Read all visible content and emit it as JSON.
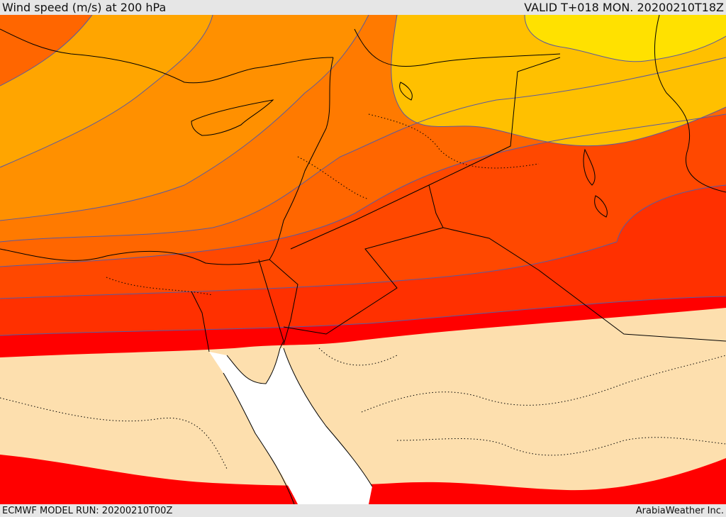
{
  "header": {
    "title": "Wind speed (m/s) at 200 hPa",
    "valid_time": "VALID T+018 MON. 20200210T18Z"
  },
  "footer": {
    "model_run": "ECMWF MODEL RUN: 20200210T00Z",
    "provider": "ArabiaWeather Inc."
  },
  "map": {
    "field": "wind speed",
    "level": "200 hPa",
    "colors": {
      "yellow": "#ffe100",
      "gold": "#ffc000",
      "amber": "#ffa500",
      "orange_light": "#ff9000",
      "orange": "#ff7a00",
      "orange_dark": "#ff6600",
      "red_orange": "#ff4800",
      "red_light": "#ff3000",
      "red": "#ff0000",
      "calm": "#fddfae",
      "sea_mask": "#ffffff",
      "contour": "#5a5aa0",
      "border": "#000000"
    }
  }
}
